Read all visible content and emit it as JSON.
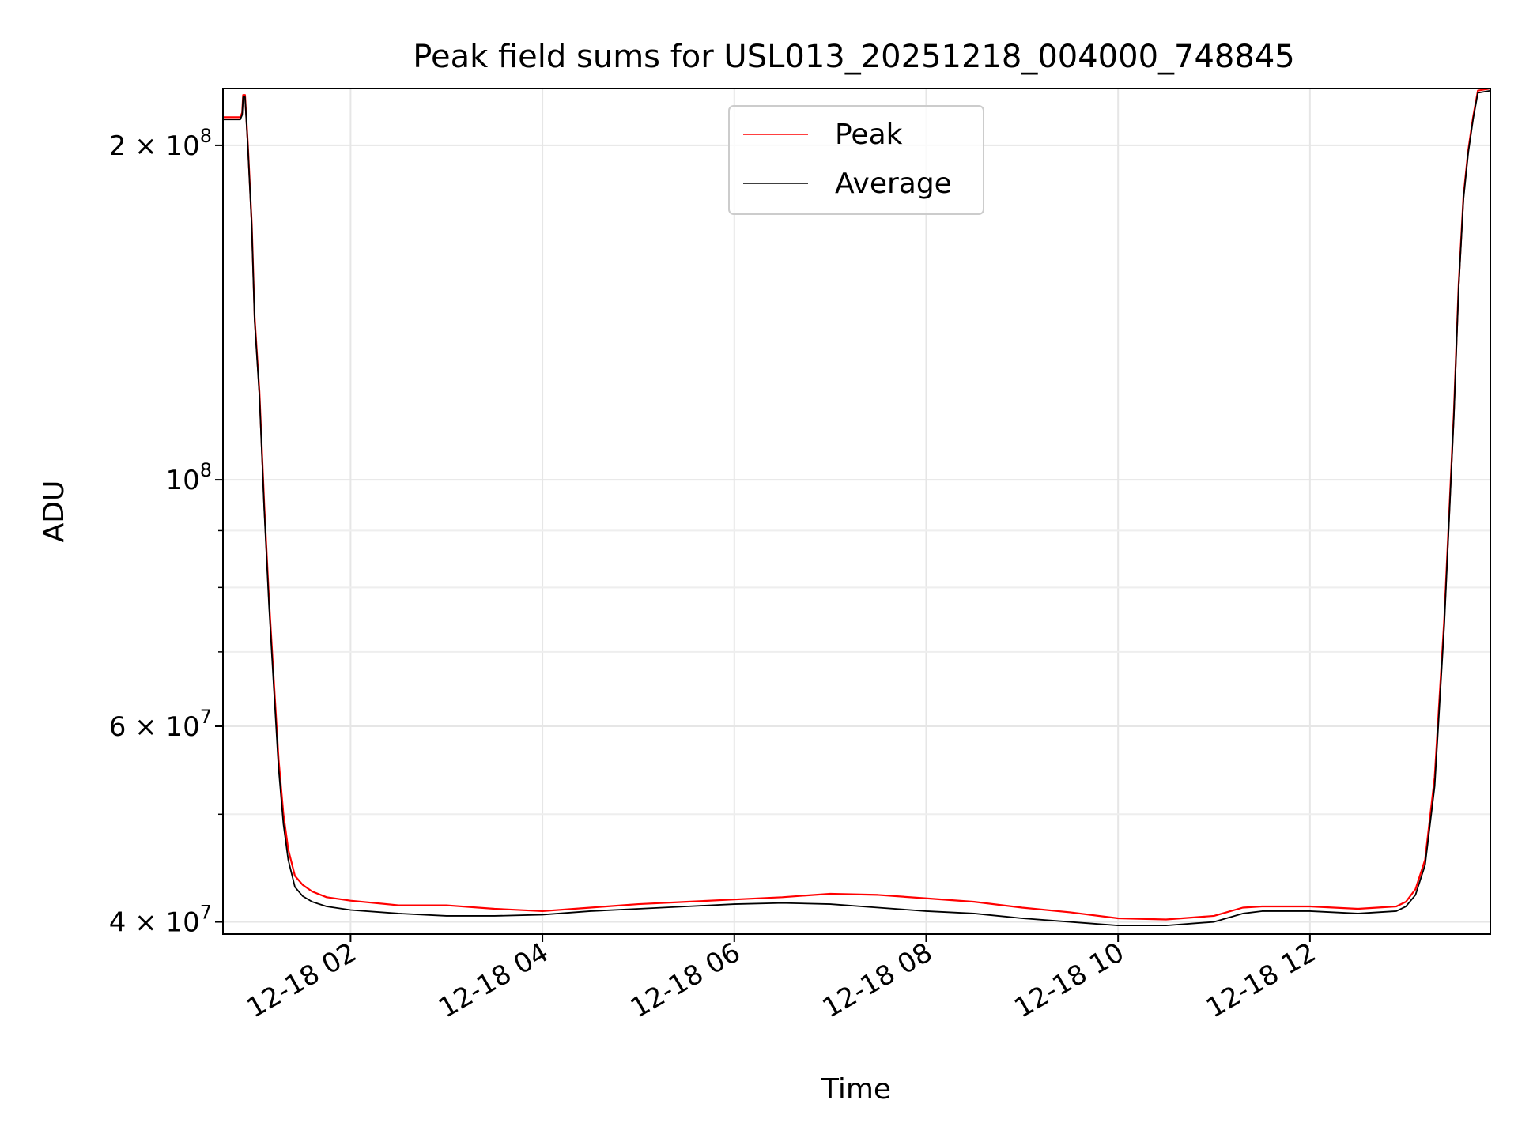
{
  "chart_data": {
    "type": "line",
    "title": "Peak field sums for USL013_20251218_004000_748845",
    "xlabel": "Time",
    "ylabel": "ADU",
    "yscale": "log",
    "grid": true,
    "legend_position": "top-center",
    "xlim_hours": [
      0.67,
      13.88
    ],
    "ylim": [
      39000000,
      225000000
    ],
    "x_ticks": [
      {
        "hour": 2,
        "label": "12-18 02"
      },
      {
        "hour": 4,
        "label": "12-18 04"
      },
      {
        "hour": 6,
        "label": "12-18 06"
      },
      {
        "hour": 8,
        "label": "12-18 08"
      },
      {
        "hour": 10,
        "label": "12-18 10"
      },
      {
        "hour": 12,
        "label": "12-18 12"
      }
    ],
    "y_ticks": [
      {
        "value": 40000000,
        "base": "4 × 10",
        "exp": "7"
      },
      {
        "value": 60000000,
        "base": "6 × 10",
        "exp": "7"
      },
      {
        "value": 100000000,
        "base": "10",
        "exp": "8"
      },
      {
        "value": 200000000,
        "base": "2 × 10",
        "exp": "8"
      }
    ],
    "y_minor_ticks": [
      50000000,
      70000000,
      80000000,
      90000000
    ],
    "series": [
      {
        "name": "Peak",
        "color": "#ff0000",
        "points": [
          [
            0.67,
            212000000
          ],
          [
            0.85,
            212000000
          ],
          [
            0.87,
            214000000
          ],
          [
            0.88,
            222000000
          ],
          [
            0.9,
            222000000
          ],
          [
            0.93,
            200000000
          ],
          [
            0.97,
            170000000
          ],
          [
            1.0,
            140000000
          ],
          [
            1.05,
            120000000
          ],
          [
            1.1,
            95000000
          ],
          [
            1.15,
            78000000
          ],
          [
            1.2,
            66000000
          ],
          [
            1.25,
            56000000
          ],
          [
            1.3,
            50000000
          ],
          [
            1.35,
            46500000
          ],
          [
            1.42,
            44000000
          ],
          [
            1.5,
            43200000
          ],
          [
            1.6,
            42600000
          ],
          [
            1.75,
            42100000
          ],
          [
            2.0,
            41800000
          ],
          [
            2.5,
            41400000
          ],
          [
            3.0,
            41400000
          ],
          [
            3.5,
            41100000
          ],
          [
            4.0,
            40900000
          ],
          [
            4.5,
            41200000
          ],
          [
            5.0,
            41500000
          ],
          [
            5.5,
            41700000
          ],
          [
            6.0,
            41900000
          ],
          [
            6.5,
            42100000
          ],
          [
            7.0,
            42400000
          ],
          [
            7.5,
            42300000
          ],
          [
            8.0,
            42000000
          ],
          [
            8.5,
            41700000
          ],
          [
            9.0,
            41200000
          ],
          [
            9.5,
            40800000
          ],
          [
            10.0,
            40300000
          ],
          [
            10.5,
            40200000
          ],
          [
            11.0,
            40500000
          ],
          [
            11.3,
            41200000
          ],
          [
            11.5,
            41300000
          ],
          [
            12.0,
            41300000
          ],
          [
            12.5,
            41100000
          ],
          [
            12.9,
            41300000
          ],
          [
            13.0,
            41700000
          ],
          [
            13.1,
            42800000
          ],
          [
            13.2,
            45500000
          ],
          [
            13.3,
            54000000
          ],
          [
            13.4,
            75000000
          ],
          [
            13.5,
            115000000
          ],
          [
            13.55,
            150000000
          ],
          [
            13.6,
            180000000
          ],
          [
            13.65,
            198000000
          ],
          [
            13.7,
            212000000
          ],
          [
            13.75,
            224000000
          ],
          [
            13.88,
            225000000
          ]
        ]
      },
      {
        "name": "Average",
        "color": "#000000",
        "points": [
          [
            0.67,
            211000000
          ],
          [
            0.85,
            211000000
          ],
          [
            0.87,
            213000000
          ],
          [
            0.88,
            221000000
          ],
          [
            0.9,
            221000000
          ],
          [
            0.93,
            199000000
          ],
          [
            0.97,
            169000000
          ],
          [
            1.0,
            139000000
          ],
          [
            1.05,
            119000000
          ],
          [
            1.1,
            94000000
          ],
          [
            1.15,
            77000000
          ],
          [
            1.2,
            65000000
          ],
          [
            1.25,
            55000000
          ],
          [
            1.3,
            49000000
          ],
          [
            1.35,
            45500000
          ],
          [
            1.42,
            43000000
          ],
          [
            1.5,
            42200000
          ],
          [
            1.6,
            41700000
          ],
          [
            1.75,
            41300000
          ],
          [
            2.0,
            41000000
          ],
          [
            2.5,
            40700000
          ],
          [
            3.0,
            40500000
          ],
          [
            3.5,
            40500000
          ],
          [
            4.0,
            40600000
          ],
          [
            4.5,
            40900000
          ],
          [
            5.0,
            41100000
          ],
          [
            5.5,
            41300000
          ],
          [
            6.0,
            41500000
          ],
          [
            6.5,
            41600000
          ],
          [
            7.0,
            41500000
          ],
          [
            7.5,
            41200000
          ],
          [
            8.0,
            40900000
          ],
          [
            8.5,
            40700000
          ],
          [
            9.0,
            40300000
          ],
          [
            9.5,
            40000000
          ],
          [
            10.0,
            39700000
          ],
          [
            10.5,
            39700000
          ],
          [
            11.0,
            40000000
          ],
          [
            11.3,
            40700000
          ],
          [
            11.5,
            40900000
          ],
          [
            12.0,
            40900000
          ],
          [
            12.5,
            40700000
          ],
          [
            12.9,
            40900000
          ],
          [
            13.0,
            41300000
          ],
          [
            13.1,
            42300000
          ],
          [
            13.2,
            45000000
          ],
          [
            13.3,
            53000000
          ],
          [
            13.4,
            74000000
          ],
          [
            13.5,
            114000000
          ],
          [
            13.55,
            149000000
          ],
          [
            13.6,
            179000000
          ],
          [
            13.65,
            197000000
          ],
          [
            13.7,
            211000000
          ],
          [
            13.75,
            223000000
          ],
          [
            13.88,
            224000000
          ]
        ]
      }
    ]
  }
}
